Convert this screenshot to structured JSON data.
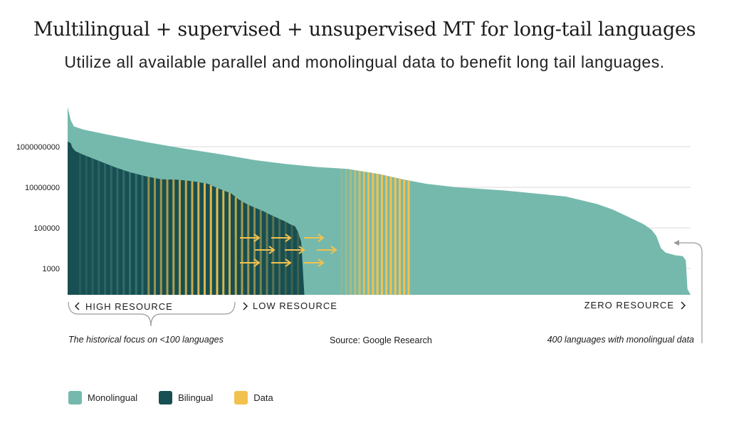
{
  "header": {
    "title": "Multilingual + supervised + unsupervised MT for long-tail languages",
    "subtitle": "Utilize all available parallel and monolingual data to benefit long tail languages."
  },
  "colors": {
    "monolingual": "#75b9ad",
    "bilingual": "#174f52",
    "data": "#f2c14e",
    "gridline": "#d9d9d9",
    "text": "#1b1b1b"
  },
  "chart_data": {
    "type": "area",
    "y_scale": "log",
    "y_tick_labels": [
      "1000000000",
      "10000000",
      "100000",
      "1000"
    ],
    "y_tick_values": [
      1000000000,
      10000000,
      100000,
      1000
    ],
    "x_range": [
      0,
      400
    ],
    "x_unit_note": "language rank",
    "grid": true,
    "legend_placement": "bottom-left",
    "series": [
      {
        "name": "Monolingual",
        "color": "#75b9ad",
        "points": [
          [
            0,
            100000000000
          ],
          [
            2,
            20000000000
          ],
          [
            4,
            10000000000
          ],
          [
            10,
            7000000000
          ],
          [
            25,
            4000000000
          ],
          [
            50,
            1700000000
          ],
          [
            75,
            800000000
          ],
          [
            100,
            400000000
          ],
          [
            120,
            220000000
          ],
          [
            140,
            140000000
          ],
          [
            160,
            100000000
          ],
          [
            180,
            80000000
          ],
          [
            200,
            45000000
          ],
          [
            215,
            25000000
          ],
          [
            230,
            15000000
          ],
          [
            250,
            10000000
          ],
          [
            280,
            7000000
          ],
          [
            300,
            5000000
          ],
          [
            320,
            3500000
          ],
          [
            340,
            1500000
          ],
          [
            350,
            800000
          ],
          [
            360,
            350000
          ],
          [
            370,
            150000
          ],
          [
            375,
            80000
          ],
          [
            378,
            40000
          ],
          [
            381,
            10000
          ],
          [
            384,
            6000
          ],
          [
            390,
            4500
          ],
          [
            395,
            4000
          ],
          [
            397,
            2500
          ],
          [
            398,
            100
          ],
          [
            400,
            50
          ]
        ]
      },
      {
        "name": "Bilingual",
        "color": "#174f52",
        "points": [
          [
            0,
            1800000000
          ],
          [
            2,
            1500000000
          ],
          [
            3,
            900000000
          ],
          [
            5,
            600000000
          ],
          [
            10,
            400000000
          ],
          [
            20,
            200000000
          ],
          [
            30,
            100000000
          ],
          [
            40,
            55000000
          ],
          [
            50,
            35000000
          ],
          [
            60,
            25000000
          ],
          [
            70,
            24000000
          ],
          [
            80,
            20000000
          ],
          [
            90,
            15000000
          ],
          [
            95,
            10000000
          ],
          [
            100,
            7000000
          ],
          [
            105,
            5000000
          ],
          [
            110,
            2500000
          ],
          [
            115,
            1500000
          ],
          [
            120,
            1000000
          ],
          [
            125,
            700000
          ],
          [
            130,
            450000
          ],
          [
            135,
            300000
          ],
          [
            140,
            200000
          ],
          [
            143,
            150000
          ],
          [
            146,
            120000
          ],
          [
            148,
            60000
          ],
          [
            150,
            20000
          ],
          [
            152,
            50
          ]
        ]
      }
    ],
    "annotations": {
      "high_resource": "HIGH RESOURCE",
      "low_resource": "LOW RESOURCE",
      "zero_resource": "ZERO RESOURCE",
      "left_note": "The historical focus on <100 languages",
      "source": "Source: Google Research",
      "right_note": "400 languages with monolingual data"
    }
  },
  "legend": [
    {
      "label": "Monolingual",
      "color": "#75b9ad"
    },
    {
      "label": "Bilingual",
      "color": "#174f52"
    },
    {
      "label": "Data",
      "color": "#f2c14e"
    }
  ]
}
